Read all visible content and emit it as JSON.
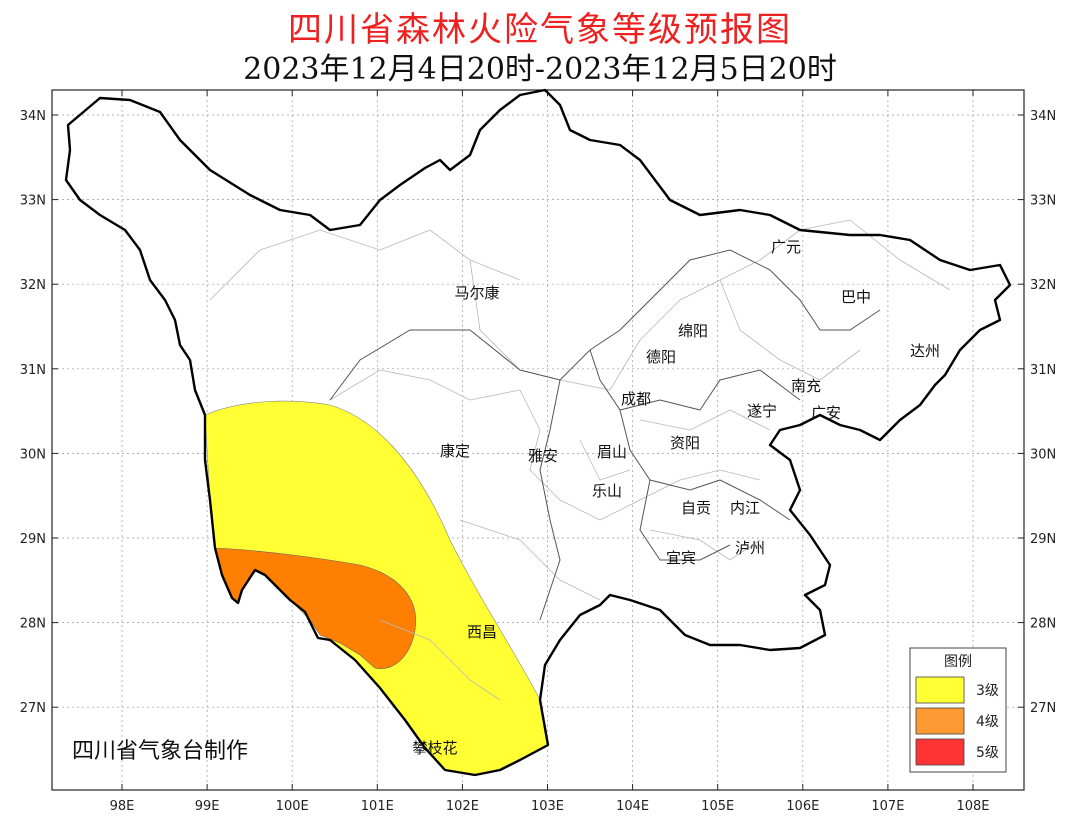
{
  "title": "四川省森林火险气象等级预报图",
  "subtitle": "2023年12月4日20时-2023年12月5日20时",
  "credit": "四川省气象台制作",
  "lat_labels": [
    "34N",
    "33N",
    "32N",
    "31N",
    "30N",
    "29N",
    "28N",
    "27N"
  ],
  "lon_labels": [
    "98E",
    "99E",
    "100E",
    "101E",
    "102E",
    "103E",
    "104E",
    "105E",
    "106E",
    "107E",
    "108E"
  ],
  "cities": [
    {
      "name": "广元"
    },
    {
      "name": "巴中"
    },
    {
      "name": "马尔康"
    },
    {
      "name": "绵阳"
    },
    {
      "name": "达州"
    },
    {
      "name": "德阳"
    },
    {
      "name": "南充"
    },
    {
      "name": "成都"
    },
    {
      "name": "遂宁"
    },
    {
      "name": "广安"
    },
    {
      "name": "康定"
    },
    {
      "name": "雅安"
    },
    {
      "name": "眉山"
    },
    {
      "name": "资阳"
    },
    {
      "name": "乐山"
    },
    {
      "name": "自贡"
    },
    {
      "name": "内江"
    },
    {
      "name": "宜宾"
    },
    {
      "name": "泸州"
    },
    {
      "name": "西昌"
    },
    {
      "name": "攀枝花"
    }
  ],
  "legend": {
    "title": "图例",
    "items": [
      {
        "label": "3级",
        "color": "#ffff33"
      },
      {
        "label": "4级",
        "color": "#ff9933"
      },
      {
        "label": "5级",
        "color": "#ff3333"
      }
    ]
  },
  "map_colors": {
    "level3": "#ffff33",
    "level4": "#ff8000"
  }
}
